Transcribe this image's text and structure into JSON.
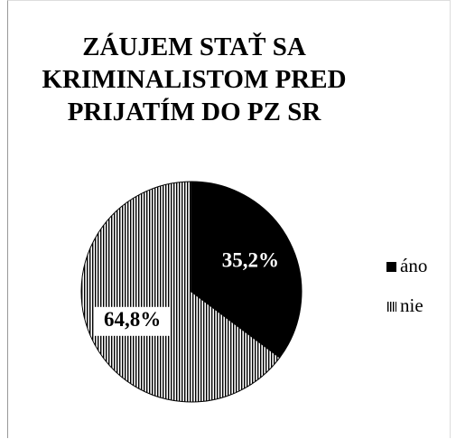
{
  "chart_data": {
    "type": "pie",
    "title": "ZÁUJEM STAŤ SA KRIMINALISTOM PRED PRIJATÍM DO PZ SR",
    "categories": [
      "áno",
      "nie"
    ],
    "values": [
      35.2,
      64.8
    ],
    "value_labels": [
      "35,2%",
      "64,8%"
    ],
    "colors": [
      "#000000",
      "#000000"
    ],
    "patterns": [
      "solid",
      "vertical-stripes"
    ],
    "legend": "right"
  }
}
